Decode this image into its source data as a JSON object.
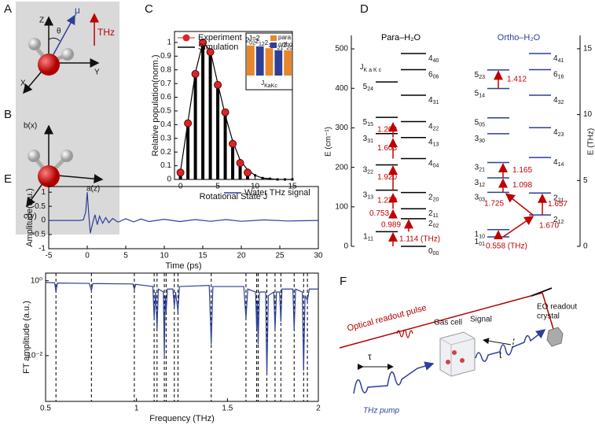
{
  "panel_labels": [
    "A",
    "B",
    "C",
    "D",
    "E",
    "F"
  ],
  "panel_a": {
    "labels": [
      "Z",
      "θ",
      "μ",
      "THz",
      "Y",
      "X"
    ]
  },
  "panel_b": {
    "labels": [
      "b(x)",
      "a(z)",
      "c(y)"
    ]
  },
  "chart_data": [
    {
      "type": "line",
      "xlabel": "Rotational State J",
      "ylabel": "Relative population(norm.)",
      "xlim": [
        -0.8,
        15
      ],
      "ylim": [
        0,
        1.08
      ],
      "xticks": [
        0,
        5,
        10,
        15
      ],
      "yticks": [
        0,
        0.1,
        0.2,
        0.3,
        0.4,
        0.5,
        0.6,
        0.7,
        0.8,
        0.9,
        1
      ],
      "legend": "upper left",
      "series": [
        {
          "name": "Experiment",
          "color": "#d62728",
          "style": "stem",
          "x": [
            0,
            1,
            2,
            3,
            4,
            5,
            6,
            7,
            8,
            9
          ],
          "values": [
            0.05,
            0.41,
            0.77,
            1.0,
            0.93,
            0.69,
            0.49,
            0.26,
            0.12,
            0.05
          ]
        },
        {
          "name": "Simulation",
          "color": "#000000",
          "style": "line",
          "x": [
            0,
            1,
            2,
            3,
            4,
            5,
            6,
            7,
            8,
            9,
            10,
            11,
            12,
            13,
            14,
            15
          ],
          "values": [
            0.06,
            0.42,
            0.78,
            1.0,
            0.94,
            0.7,
            0.47,
            0.28,
            0.14,
            0.07,
            0.03,
            0.01,
            0.005,
            0,
            0,
            0
          ]
        }
      ]
    },
    {
      "type": "bar",
      "title": "J=2",
      "categories": [
        "2",
        "2",
        "2",
        "2",
        "2"
      ],
      "category_subscripts": [
        "02",
        "12",
        "11",
        "21",
        "20"
      ],
      "values": [
        1,
        0.97,
        0.91,
        0.84,
        0.84
      ],
      "colors": [
        "#e8862a",
        "#2e3f99",
        "#e8862a",
        "#2e3f99",
        "#e8862a"
      ],
      "ylim": [
        0,
        1.15
      ],
      "xlabel": "J",
      "xlabel_subscript": "KaKc",
      "legend": [
        {
          "name": "para",
          "color": "#e8862a"
        },
        {
          "name": "ortho",
          "color": "#2e3f99"
        }
      ]
    },
    {
      "type": "line",
      "xlabel": "Time (ps)",
      "ylabel": "Amplitude(a.u.)",
      "xlim": [
        -5,
        30
      ],
      "ylim": [
        -1,
        1.2
      ],
      "xticks": [
        -5,
        0,
        5,
        10,
        15,
        20,
        25,
        30
      ],
      "yticks": [
        -1,
        -0.5,
        0,
        0.5,
        1
      ],
      "legend": "upper right",
      "series": [
        {
          "name": "Water THz signal",
          "color": "#2e3f99",
          "x": [
            -5,
            -1,
            -0.5,
            -0.2,
            0,
            0.2,
            0.4,
            0.7,
            1,
            1.3,
            1.6,
            2,
            2.4,
            2.8,
            3.3,
            4,
            5,
            6,
            7,
            8,
            10,
            12,
            14,
            16,
            18,
            20,
            23,
            26,
            30
          ],
          "values": [
            0,
            0,
            0.02,
            0.3,
            1.0,
            0.2,
            -0.45,
            -0.1,
            0.2,
            -0.15,
            0.15,
            -0.1,
            0.1,
            -0.08,
            0.07,
            -0.06,
            0.06,
            -0.05,
            0.05,
            -0.04,
            0.04,
            -0.04,
            0.03,
            -0.03,
            0.03,
            -0.03,
            0.02,
            -0.02,
            0
          ]
        }
      ]
    },
    {
      "type": "line",
      "log_y": true,
      "xlabel": "Frequency (THz)",
      "ylabel": "FT amplitude (a.u.)",
      "xlim": [
        0.5,
        2
      ],
      "ylim": [
        0.0006,
        1.6
      ],
      "xticks": [
        0.5,
        1,
        1.5,
        2
      ],
      "yticks": [
        {
          "value": 1,
          "label": "10⁰"
        },
        {
          "value": 0.01,
          "label": "10⁻²"
        }
      ],
      "vlines": [
        0.557,
        0.752,
        0.988,
        1.097,
        1.113,
        1.153,
        1.163,
        1.208,
        1.228,
        1.411,
        1.602,
        1.661,
        1.669,
        1.717,
        1.762,
        1.794,
        1.867,
        1.919,
        1.94
      ],
      "series": [
        {
          "color": "#2e3f99",
          "x": [
            0.5,
            0.55,
            0.557,
            0.565,
            0.74,
            0.752,
            0.76,
            0.98,
            0.988,
            0.996,
            1.09,
            1.097,
            1.105,
            1.113,
            1.12,
            1.148,
            1.153,
            1.158,
            1.163,
            1.17,
            1.2,
            1.208,
            1.215,
            1.228,
            1.236,
            1.4,
            1.411,
            1.42,
            1.59,
            1.602,
            1.612,
            1.655,
            1.661,
            1.665,
            1.669,
            1.676,
            1.71,
            1.717,
            1.725,
            1.755,
            1.762,
            1.77,
            1.787,
            1.794,
            1.8,
            1.86,
            1.867,
            1.875,
            1.912,
            1.919,
            1.927,
            1.94,
            1.95,
            2.0
          ],
          "values": [
            0.9,
            0.88,
            0.5,
            0.87,
            0.85,
            0.55,
            0.84,
            0.82,
            0.6,
            0.8,
            0.7,
            0.1,
            0.5,
            0.05,
            0.6,
            0.5,
            0.01,
            0.4,
            0.15,
            0.6,
            0.6,
            0.2,
            0.5,
            0.15,
            0.7,
            0.75,
            0.02,
            0.7,
            0.7,
            0.1,
            0.6,
            0.5,
            0.05,
            0.3,
            0.02,
            0.5,
            0.5,
            0.003,
            0.4,
            0.5,
            0.05,
            0.5,
            0.5,
            0.08,
            0.6,
            0.6,
            0.05,
            0.6,
            0.5,
            0.004,
            0.4,
            0.3,
            0.6,
            0.6
          ]
        }
      ]
    }
  ],
  "energy_diagram": {
    "ylabel": "E (cm⁻¹)",
    "y2label": "E (THz)",
    "ylim": [
      0,
      534
    ],
    "yticks": [
      0,
      100,
      200,
      300,
      400,
      500
    ],
    "y2lim": [
      0,
      16.01
    ],
    "y2ticks": [
      0,
      5,
      10,
      15
    ],
    "annotation": {
      "j": "J",
      "k": "K a K c"
    },
    "species": [
      {
        "name": "Para–H₂O",
        "color": "#000000",
        "levels": [
          {
            "j": "1",
            "k": "11",
            "energy": 37.1,
            "column": 0
          },
          {
            "j": "3",
            "k": "13",
            "energy": 142.3,
            "column": 0
          },
          {
            "j": "3",
            "k": "22",
            "energy": 206.3,
            "column": 0
          },
          {
            "j": "3",
            "k": "31",
            "energy": 285.4,
            "column": 0
          },
          {
            "j": "5",
            "k": "15",
            "energy": 326.6,
            "column": 0
          },
          {
            "j": "5",
            "k": "24",
            "energy": 416.2,
            "column": 0
          },
          {
            "j": "0",
            "k": "00",
            "energy": 0,
            "column": 1
          },
          {
            "j": "2",
            "k": "02",
            "energy": 70.1,
            "column": 1
          },
          {
            "j": "2",
            "k": "11",
            "energy": 95.2,
            "column": 1
          },
          {
            "j": "2",
            "k": "20",
            "energy": 136.2,
            "column": 1
          },
          {
            "j": "4",
            "k": "04",
            "energy": 222.1,
            "column": 1
          },
          {
            "j": "4",
            "k": "13",
            "energy": 275.5,
            "column": 1
          },
          {
            "j": "4",
            "k": "22",
            "energy": 315.8,
            "column": 1
          },
          {
            "j": "4",
            "k": "31",
            "energy": 382.5,
            "column": 1
          },
          {
            "j": "6",
            "k": "06",
            "energy": 447.3,
            "column": 1
          },
          {
            "j": "4",
            "k": "40",
            "energy": 488.1,
            "column": 1
          }
        ],
        "transitions": [
          {
            "from": 6,
            "to": 0,
            "label": "1.114 (THz)"
          },
          {
            "from": 0,
            "to": 7,
            "label": "0.989"
          },
          {
            "from": 7,
            "to": 8,
            "label": "0.753"
          },
          {
            "from": 8,
            "to": 9,
            "label": "1.229"
          },
          {
            "from": 1,
            "to": 2,
            "label": "1.920"
          },
          {
            "from": 10,
            "to": 11,
            "label": "1.603"
          },
          {
            "from": 11,
            "to": 12,
            "label": "1.209"
          }
        ]
      },
      {
        "name": "Ortho–H₂O",
        "color": "#2e3f99",
        "levels": [
          {
            "j": "1",
            "k": "01",
            "energy": 23.8,
            "column": 0
          },
          {
            "j": "1",
            "k": "10",
            "energy": 42.4,
            "column": 0
          },
          {
            "j": "3",
            "k": "03",
            "energy": 136.8,
            "column": 0
          },
          {
            "j": "3",
            "k": "12",
            "energy": 173.4,
            "column": 0
          },
          {
            "j": "3",
            "k": "21",
            "energy": 212.2,
            "column": 0
          },
          {
            "j": "3",
            "k": "30",
            "energy": 285.2,
            "column": 0
          },
          {
            "j": "5",
            "k": "05",
            "energy": 325.3,
            "column": 0
          },
          {
            "j": "5",
            "k": "14",
            "energy": 399.5,
            "column": 0
          },
          {
            "j": "5",
            "k": "23",
            "energy": 446.7,
            "column": 0
          },
          {
            "j": "2",
            "k": "12",
            "energy": 79.5,
            "column": 1
          },
          {
            "j": "2",
            "k": "21",
            "energy": 134.9,
            "column": 1
          },
          {
            "j": "4",
            "k": "14",
            "energy": 224.8,
            "column": 1
          },
          {
            "j": "4",
            "k": "23",
            "energy": 300.4,
            "column": 1
          },
          {
            "j": "4",
            "k": "32",
            "energy": 382.5,
            "column": 1
          },
          {
            "j": "6",
            "k": "16",
            "energy": 447.3,
            "column": 1
          },
          {
            "j": "4",
            "k": "41",
            "energy": 488.1,
            "column": 1
          }
        ],
        "transitions": [
          {
            "from": 0,
            "to": 1,
            "label": "0.558 (THz)"
          },
          {
            "from": 0,
            "to": 9,
            "label": "1.670"
          },
          {
            "from": 9,
            "to": 2,
            "label": "1.725"
          },
          {
            "from": 9,
            "to": 10,
            "label": "1.657"
          },
          {
            "from": 2,
            "to": 3,
            "label": "1.098"
          },
          {
            "from": 3,
            "to": 4,
            "label": "1.165"
          },
          {
            "from": 7,
            "to": 8,
            "label": "1.412"
          }
        ]
      }
    ]
  },
  "panel_f": {
    "labels": [
      "Optical readout pulse",
      "EO readout",
      "crystal",
      "Gas cell",
      "Signal",
      "τ",
      "t",
      "THz pump"
    ]
  }
}
